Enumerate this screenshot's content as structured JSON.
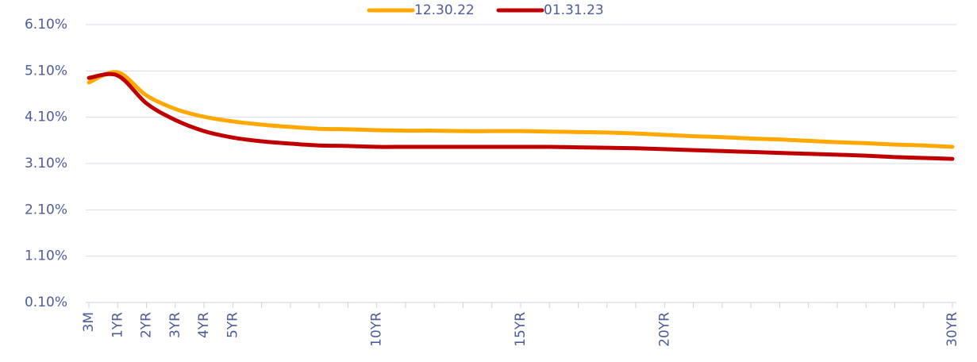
{
  "chart_data": {
    "type": "line",
    "categories": [
      "3M",
      "1YR",
      "2YR",
      "3YR",
      "4YR",
      "5YR",
      null,
      null,
      null,
      null,
      "10YR",
      null,
      null,
      null,
      null,
      "15YR",
      null,
      null,
      null,
      null,
      "20YR",
      null,
      null,
      null,
      null,
      null,
      null,
      null,
      null,
      null,
      "30YR"
    ],
    "series": [
      {
        "name": "12.30.22",
        "color": "#ffa800",
        "values": [
          4.85,
          5.07,
          4.57,
          4.28,
          4.11,
          4.01,
          3.94,
          3.89,
          3.85,
          3.84,
          3.82,
          3.81,
          3.81,
          3.8,
          3.8,
          3.8,
          3.79,
          3.78,
          3.77,
          3.75,
          3.72,
          3.69,
          3.67,
          3.64,
          3.62,
          3.59,
          3.56,
          3.54,
          3.51,
          3.49,
          3.46
        ]
      },
      {
        "name": "01.31.23",
        "color": "#c00000",
        "values": [
          4.95,
          5.0,
          4.4,
          4.04,
          3.8,
          3.66,
          3.58,
          3.53,
          3.49,
          3.48,
          3.46,
          3.46,
          3.46,
          3.46,
          3.46,
          3.46,
          3.46,
          3.45,
          3.44,
          3.43,
          3.41,
          3.39,
          3.37,
          3.35,
          3.33,
          3.31,
          3.29,
          3.27,
          3.24,
          3.22,
          3.2
        ]
      }
    ],
    "ylim": [
      0.1,
      6.1
    ],
    "yticks": [
      {
        "value": 0.1,
        "label": "0.10%"
      },
      {
        "value": 1.1,
        "label": "1.10%"
      },
      {
        "value": 2.1,
        "label": "2.10%"
      },
      {
        "value": 3.1,
        "label": "3.10%"
      },
      {
        "value": 4.1,
        "label": "4.10%"
      },
      {
        "value": 5.1,
        "label": "5.10%"
      },
      {
        "value": 6.1,
        "label": "6.10%"
      }
    ],
    "grid": true,
    "legend": "top"
  }
}
